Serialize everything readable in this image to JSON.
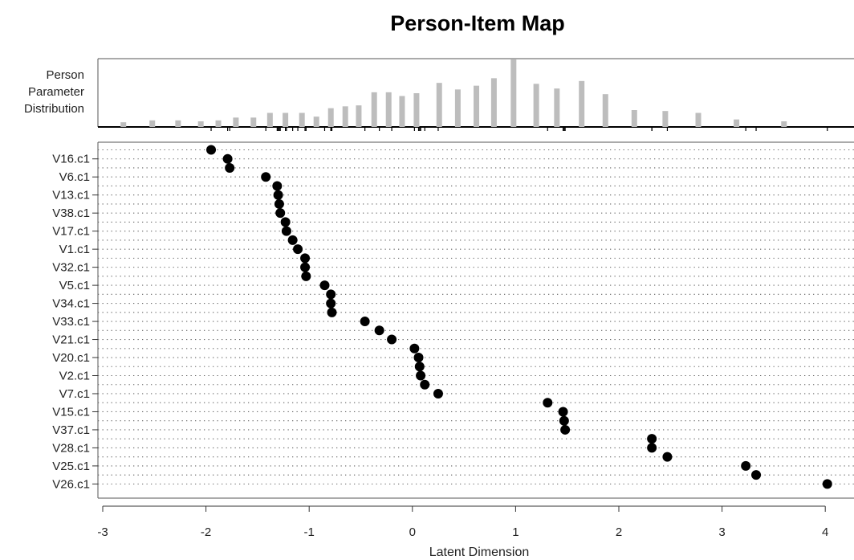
{
  "chart_data": {
    "type": "scatter",
    "title": "Person-Item Map",
    "xlabel": "Latent Dimension",
    "xlim": [
      -3,
      4
    ],
    "xticks": [
      -3,
      -2,
      -1,
      0,
      1,
      2,
      3,
      4
    ],
    "person_panel_label": [
      "Person",
      "Parameter",
      "Distribution"
    ],
    "person_distribution": {
      "x": [
        -2.8,
        -2.52,
        -2.27,
        -2.05,
        -1.88,
        -1.71,
        -1.54,
        -1.38,
        -1.23,
        -1.07,
        -0.93,
        -0.79,
        -0.65,
        -0.52,
        -0.37,
        -0.23,
        -0.1,
        0.04,
        0.26,
        0.44,
        0.62,
        0.79,
        0.98,
        1.2,
        1.4,
        1.64,
        1.87,
        2.15,
        2.45,
        2.77,
        3.14,
        3.6
      ],
      "freq": [
        5,
        7,
        7,
        6,
        7,
        10,
        10,
        15,
        15,
        15,
        11,
        20,
        22,
        23,
        37,
        37,
        33,
        36,
        47,
        40,
        44,
        52,
        72,
        46,
        41,
        49,
        35,
        18,
        17,
        15,
        8,
        6
      ]
    },
    "item_labels": [
      "V16.c1",
      "V6.c1",
      "V13.c1",
      "V38.c1",
      "V17.c1",
      "V1.c1",
      "V32.c1",
      "V5.c1",
      "V34.c1",
      "V33.c1",
      "V21.c1",
      "V20.c1",
      "V2.c1",
      "V7.c1",
      "V15.c1",
      "V37.c1",
      "V28.c1",
      "V25.c1",
      "V26.c1"
    ],
    "threshold_x": [
      -1.95,
      -1.79,
      -1.77,
      -1.42,
      -1.31,
      -1.3,
      -1.29,
      -1.28,
      -1.23,
      -1.22,
      -1.16,
      -1.11,
      -1.04,
      -1.04,
      -1.03,
      -0.85,
      -0.79,
      -0.79,
      -0.78,
      -0.46,
      -0.32,
      -0.2,
      0.02,
      0.06,
      0.07,
      0.08,
      0.12,
      0.25,
      1.31,
      1.46,
      1.47,
      1.48,
      2.32,
      2.32,
      2.47,
      3.23,
      3.33,
      4.02
    ]
  }
}
